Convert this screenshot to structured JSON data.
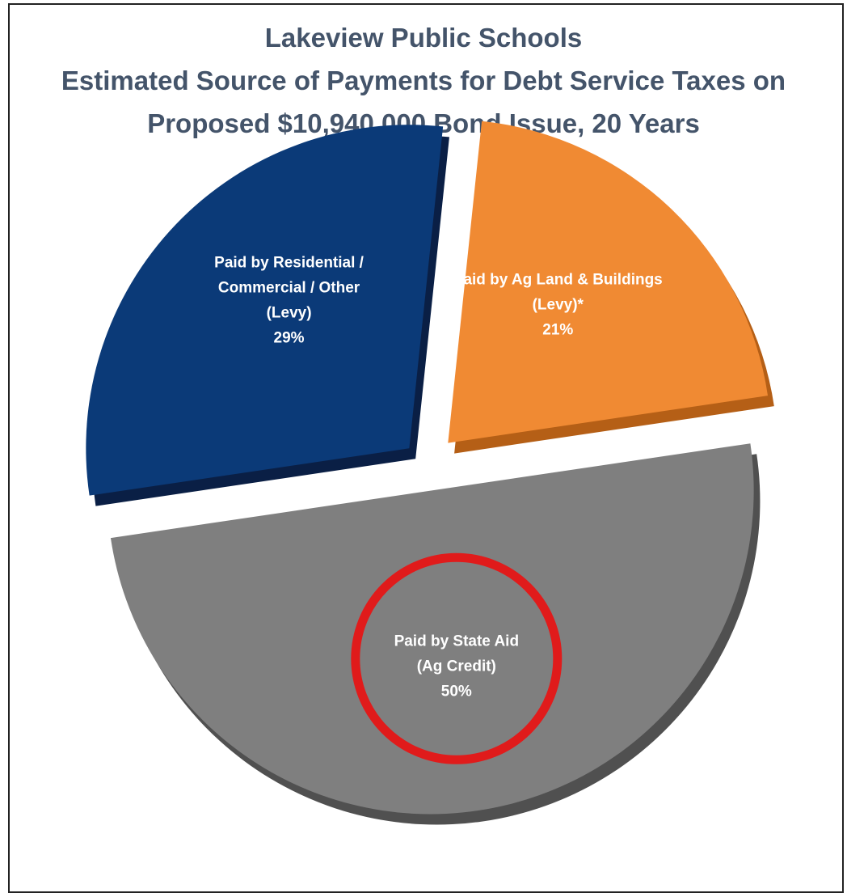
{
  "chart_data": {
    "type": "pie",
    "title_lines": [
      "Lakeview Public Schools",
      "Estimated Source of Payments for Debt Service Taxes on",
      "Proposed $10,940,000 Bond Issue, 20 Years"
    ],
    "slices": [
      {
        "id": "ag",
        "label_lines": [
          "Paid by Ag Land & Buildings",
          "(Levy)*"
        ],
        "value_label": "21%",
        "value": 21,
        "color": "#f08a33",
        "edge_color": "#b55f16",
        "label_color": "#fde6cf"
      },
      {
        "id": "state",
        "label_lines": [
          "Paid by State Aid",
          "(Ag Credit)"
        ],
        "value_label": "50%",
        "value": 50,
        "color": "#7f7f7f",
        "edge_color": "#505050",
        "label_color": "#ffffff"
      },
      {
        "id": "residential",
        "label_lines": [
          "Paid by Residential /",
          "Commercial / Other",
          "(Levy)"
        ],
        "value_label": "29%",
        "value": 29,
        "color": "#0b3a78",
        "edge_color": "#0a1f45",
        "label_color": "#ffffff"
      }
    ],
    "highlight": {
      "slice": "state",
      "shape": "circle",
      "color": "#e01b1b"
    }
  }
}
